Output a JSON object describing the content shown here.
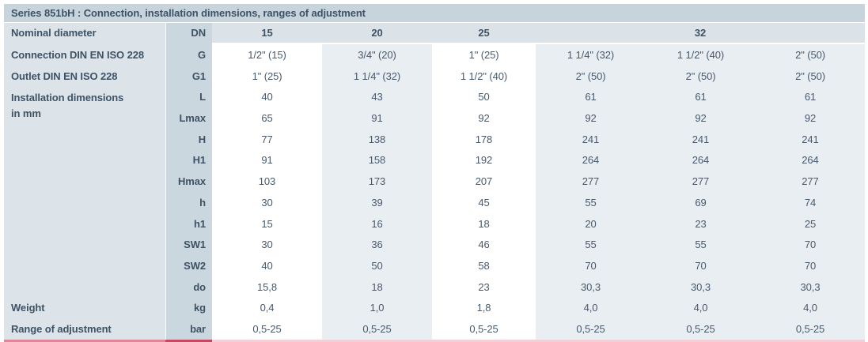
{
  "colors": {
    "title_bar_bg": "#c7d4dc",
    "label_col_bg": "#dce4ea",
    "param_col_bg": "#cbd7df",
    "row_header_bg": "#dbe3e9",
    "col_gray_bg": "#e9eef3",
    "col_white_bg": "#ffffff",
    "text_dark": "#3e5266",
    "text_data": "#47596c",
    "underline_label": "#e2849a",
    "underline_param": "#c84862",
    "underline_data": "#f3cfd8"
  },
  "table": {
    "title": "Series 851bH : Connection, installation dimensions, ranges of adjustment",
    "nominal_row": {
      "label": "Nominal diameter",
      "param": "DN",
      "headers": [
        {
          "label": "15",
          "span": 1
        },
        {
          "label": "20",
          "span": 1
        },
        {
          "label": "25",
          "span": 1
        },
        {
          "label": "32",
          "span": 3
        }
      ]
    },
    "column_pattern": [
      "white",
      "gray",
      "white",
      "gray",
      "gray",
      "gray"
    ],
    "rows": [
      {
        "label": "Connection DIN EN ISO 228",
        "param": "G",
        "values": [
          "1/2\" (15)",
          "3/4\" (20)",
          "1\" (25)",
          "1 1/4\" (32)",
          "1 1/2\" (40)",
          "2\" (50)"
        ]
      },
      {
        "label": "Outlet DIN EN ISO 228",
        "param": "G1",
        "values": [
          "1\" (25)",
          "1 1/4\" (32)",
          "1 1/2\" (40)",
          "2\" (50)",
          "2\" (50)",
          "2\" (50)"
        ]
      },
      {
        "label_lines": [
          "Installation dimensions",
          "in mm"
        ],
        "label_span": 10,
        "param": "L",
        "values": [
          "40",
          "43",
          "50",
          "61",
          "61",
          "61"
        ]
      },
      {
        "param": "Lmax",
        "values": [
          "65",
          "91",
          "92",
          "92",
          "92",
          "92"
        ]
      },
      {
        "param": "H",
        "values": [
          "77",
          "138",
          "178",
          "241",
          "241",
          "241"
        ]
      },
      {
        "param": "H1",
        "values": [
          "91",
          "158",
          "192",
          "264",
          "264",
          "264"
        ]
      },
      {
        "param": "Hmax",
        "values": [
          "103",
          "173",
          "207",
          "277",
          "277",
          "277"
        ]
      },
      {
        "param": "h",
        "values": [
          "30",
          "39",
          "45",
          "55",
          "69",
          "74"
        ]
      },
      {
        "param": "h1",
        "values": [
          "15",
          "16",
          "18",
          "20",
          "23",
          "25"
        ]
      },
      {
        "param": "SW1",
        "values": [
          "30",
          "36",
          "46",
          "55",
          "55",
          "70"
        ]
      },
      {
        "param": "SW2",
        "values": [
          "40",
          "50",
          "58",
          "70",
          "70",
          "70"
        ]
      },
      {
        "param": "do",
        "values": [
          "15,8",
          "18",
          "23",
          "30,3",
          "30,3",
          "30,3"
        ]
      },
      {
        "label": "Weight",
        "param": "kg",
        "values": [
          "0,4",
          "1,0",
          "1,8",
          "4,0",
          "4,0",
          "4,0"
        ]
      },
      {
        "label": "Range of adjustment",
        "param": "bar",
        "values": [
          "0,5-25",
          "0,5-25",
          "0,5-25",
          "0,5-25",
          "0,5-25",
          "0,5-25"
        ]
      }
    ]
  }
}
